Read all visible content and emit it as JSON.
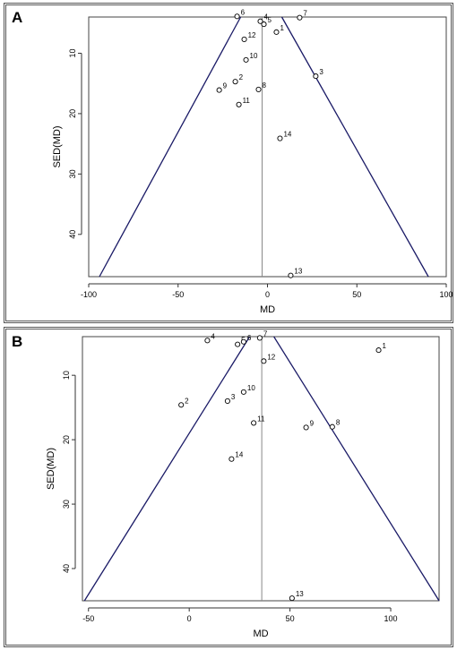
{
  "chart_data": [
    {
      "type": "scatter",
      "panel_label": "A",
      "xlabel": "MD",
      "ylabel": "SED(MD)",
      "xlim": [
        -100,
        100
      ],
      "ylim": [
        4,
        47
      ],
      "y_inverted": true,
      "xticks": [
        -100,
        -50,
        0,
        50,
        100
      ],
      "yticks": [
        10,
        20,
        30,
        40
      ],
      "pooled_md": -3,
      "funnel_lines": [
        {
          "x1": -15,
          "y1": 4,
          "x2": -94,
          "y2": 47
        },
        {
          "x1": 8,
          "y1": 4,
          "x2": 90,
          "y2": 47
        }
      ],
      "points": [
        {
          "label": "1",
          "x": 5,
          "y": 6.5
        },
        {
          "label": "2",
          "x": -18,
          "y": 14.7
        },
        {
          "label": "3",
          "x": 27,
          "y": 13.8
        },
        {
          "label": "4",
          "x": -4,
          "y": 4.7
        },
        {
          "label": "5",
          "x": -2,
          "y": 5.2
        },
        {
          "label": "6",
          "x": -17,
          "y": 3.9
        },
        {
          "label": "7",
          "x": 18,
          "y": 4.1
        },
        {
          "label": "8",
          "x": -5,
          "y": 16
        },
        {
          "label": "9",
          "x": -27,
          "y": 16.1
        },
        {
          "label": "10",
          "x": -12,
          "y": 11.1
        },
        {
          "label": "11",
          "x": -16,
          "y": 18.5
        },
        {
          "label": "12",
          "x": -13,
          "y": 7.7
        },
        {
          "label": "13",
          "x": 13,
          "y": 46.8
        },
        {
          "label": "14",
          "x": 7,
          "y": 24.1
        }
      ]
    },
    {
      "type": "scatter",
      "panel_label": "B",
      "xlabel": "MD",
      "ylabel": "SED(MD)",
      "xlim": [
        -53,
        124
      ],
      "ylim": [
        4,
        45
      ],
      "y_inverted": true,
      "xticks": [
        -50,
        0,
        50,
        100
      ],
      "yticks": [
        10,
        20,
        30,
        40
      ],
      "pooled_md": 36,
      "funnel_lines": [
        {
          "x1": 30,
          "y1": 4,
          "x2": -52,
          "y2": 45
        },
        {
          "x1": 42,
          "y1": 4,
          "x2": 124,
          "y2": 45
        }
      ],
      "points": [
        {
          "label": "1",
          "x": 94,
          "y": 6.1
        },
        {
          "label": "2",
          "x": -4,
          "y": 14.6
        },
        {
          "label": "3",
          "x": 19,
          "y": 14
        },
        {
          "label": "4",
          "x": 9,
          "y": 4.6
        },
        {
          "label": "5",
          "x": 24,
          "y": 5.2
        },
        {
          "label": "6",
          "x": 27,
          "y": 4.8
        },
        {
          "label": "7",
          "x": 35,
          "y": 4.2
        },
        {
          "label": "8",
          "x": 71,
          "y": 18
        },
        {
          "label": "9",
          "x": 58,
          "y": 18.1
        },
        {
          "label": "10",
          "x": 27,
          "y": 12.6
        },
        {
          "label": "11",
          "x": 32,
          "y": 17.4
        },
        {
          "label": "12",
          "x": 37,
          "y": 7.8
        },
        {
          "label": "13",
          "x": 51,
          "y": 44.6
        },
        {
          "label": "14",
          "x": 21,
          "y": 23
        }
      ]
    }
  ]
}
